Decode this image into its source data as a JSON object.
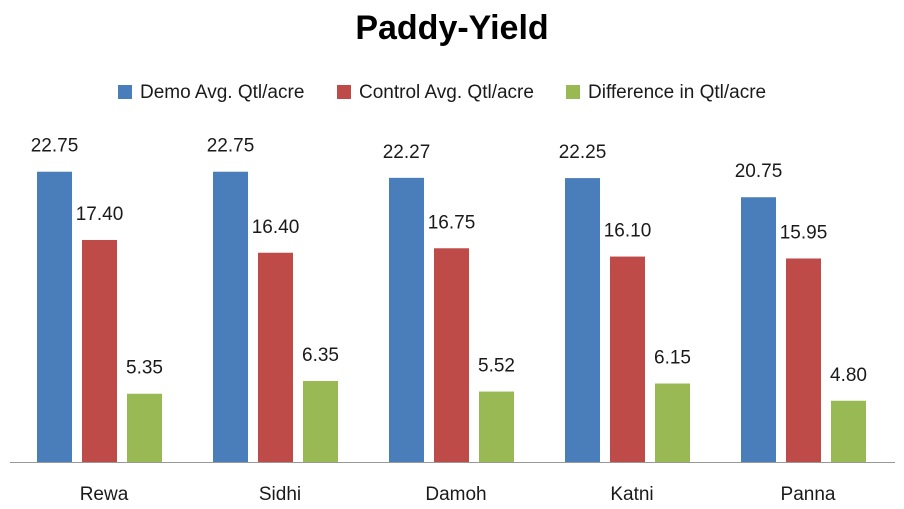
{
  "chart_data": {
    "type": "bar",
    "title": "Paddy-Yield",
    "categories": [
      "Rewa",
      "Sidhi",
      "Damoh",
      "Katni",
      "Panna"
    ],
    "series": [
      {
        "name": "Demo Avg. Qtl/acre",
        "color": "#4a7ebb",
        "values": [
          22.75,
          22.75,
          22.27,
          22.25,
          20.75
        ],
        "value_labels": [
          "22.75",
          "22.75",
          "22.27",
          "22.25",
          "20.75"
        ]
      },
      {
        "name": "Control Avg. Qtl/acre",
        "color": "#be4b48",
        "values": [
          17.4,
          16.4,
          16.75,
          16.1,
          15.95
        ],
        "value_labels": [
          "17.40",
          "16.40",
          "16.75",
          "16.10",
          "15.95"
        ]
      },
      {
        "name": "Difference in Qtl/acre",
        "color": "#98b954",
        "values": [
          5.35,
          6.35,
          5.52,
          6.15,
          4.8
        ],
        "value_labels": [
          "5.35",
          "6.35",
          "5.52",
          "6.15",
          "4.80"
        ]
      }
    ],
    "ylim": [
      0,
      25
    ],
    "legend": "top",
    "grid": false
  }
}
